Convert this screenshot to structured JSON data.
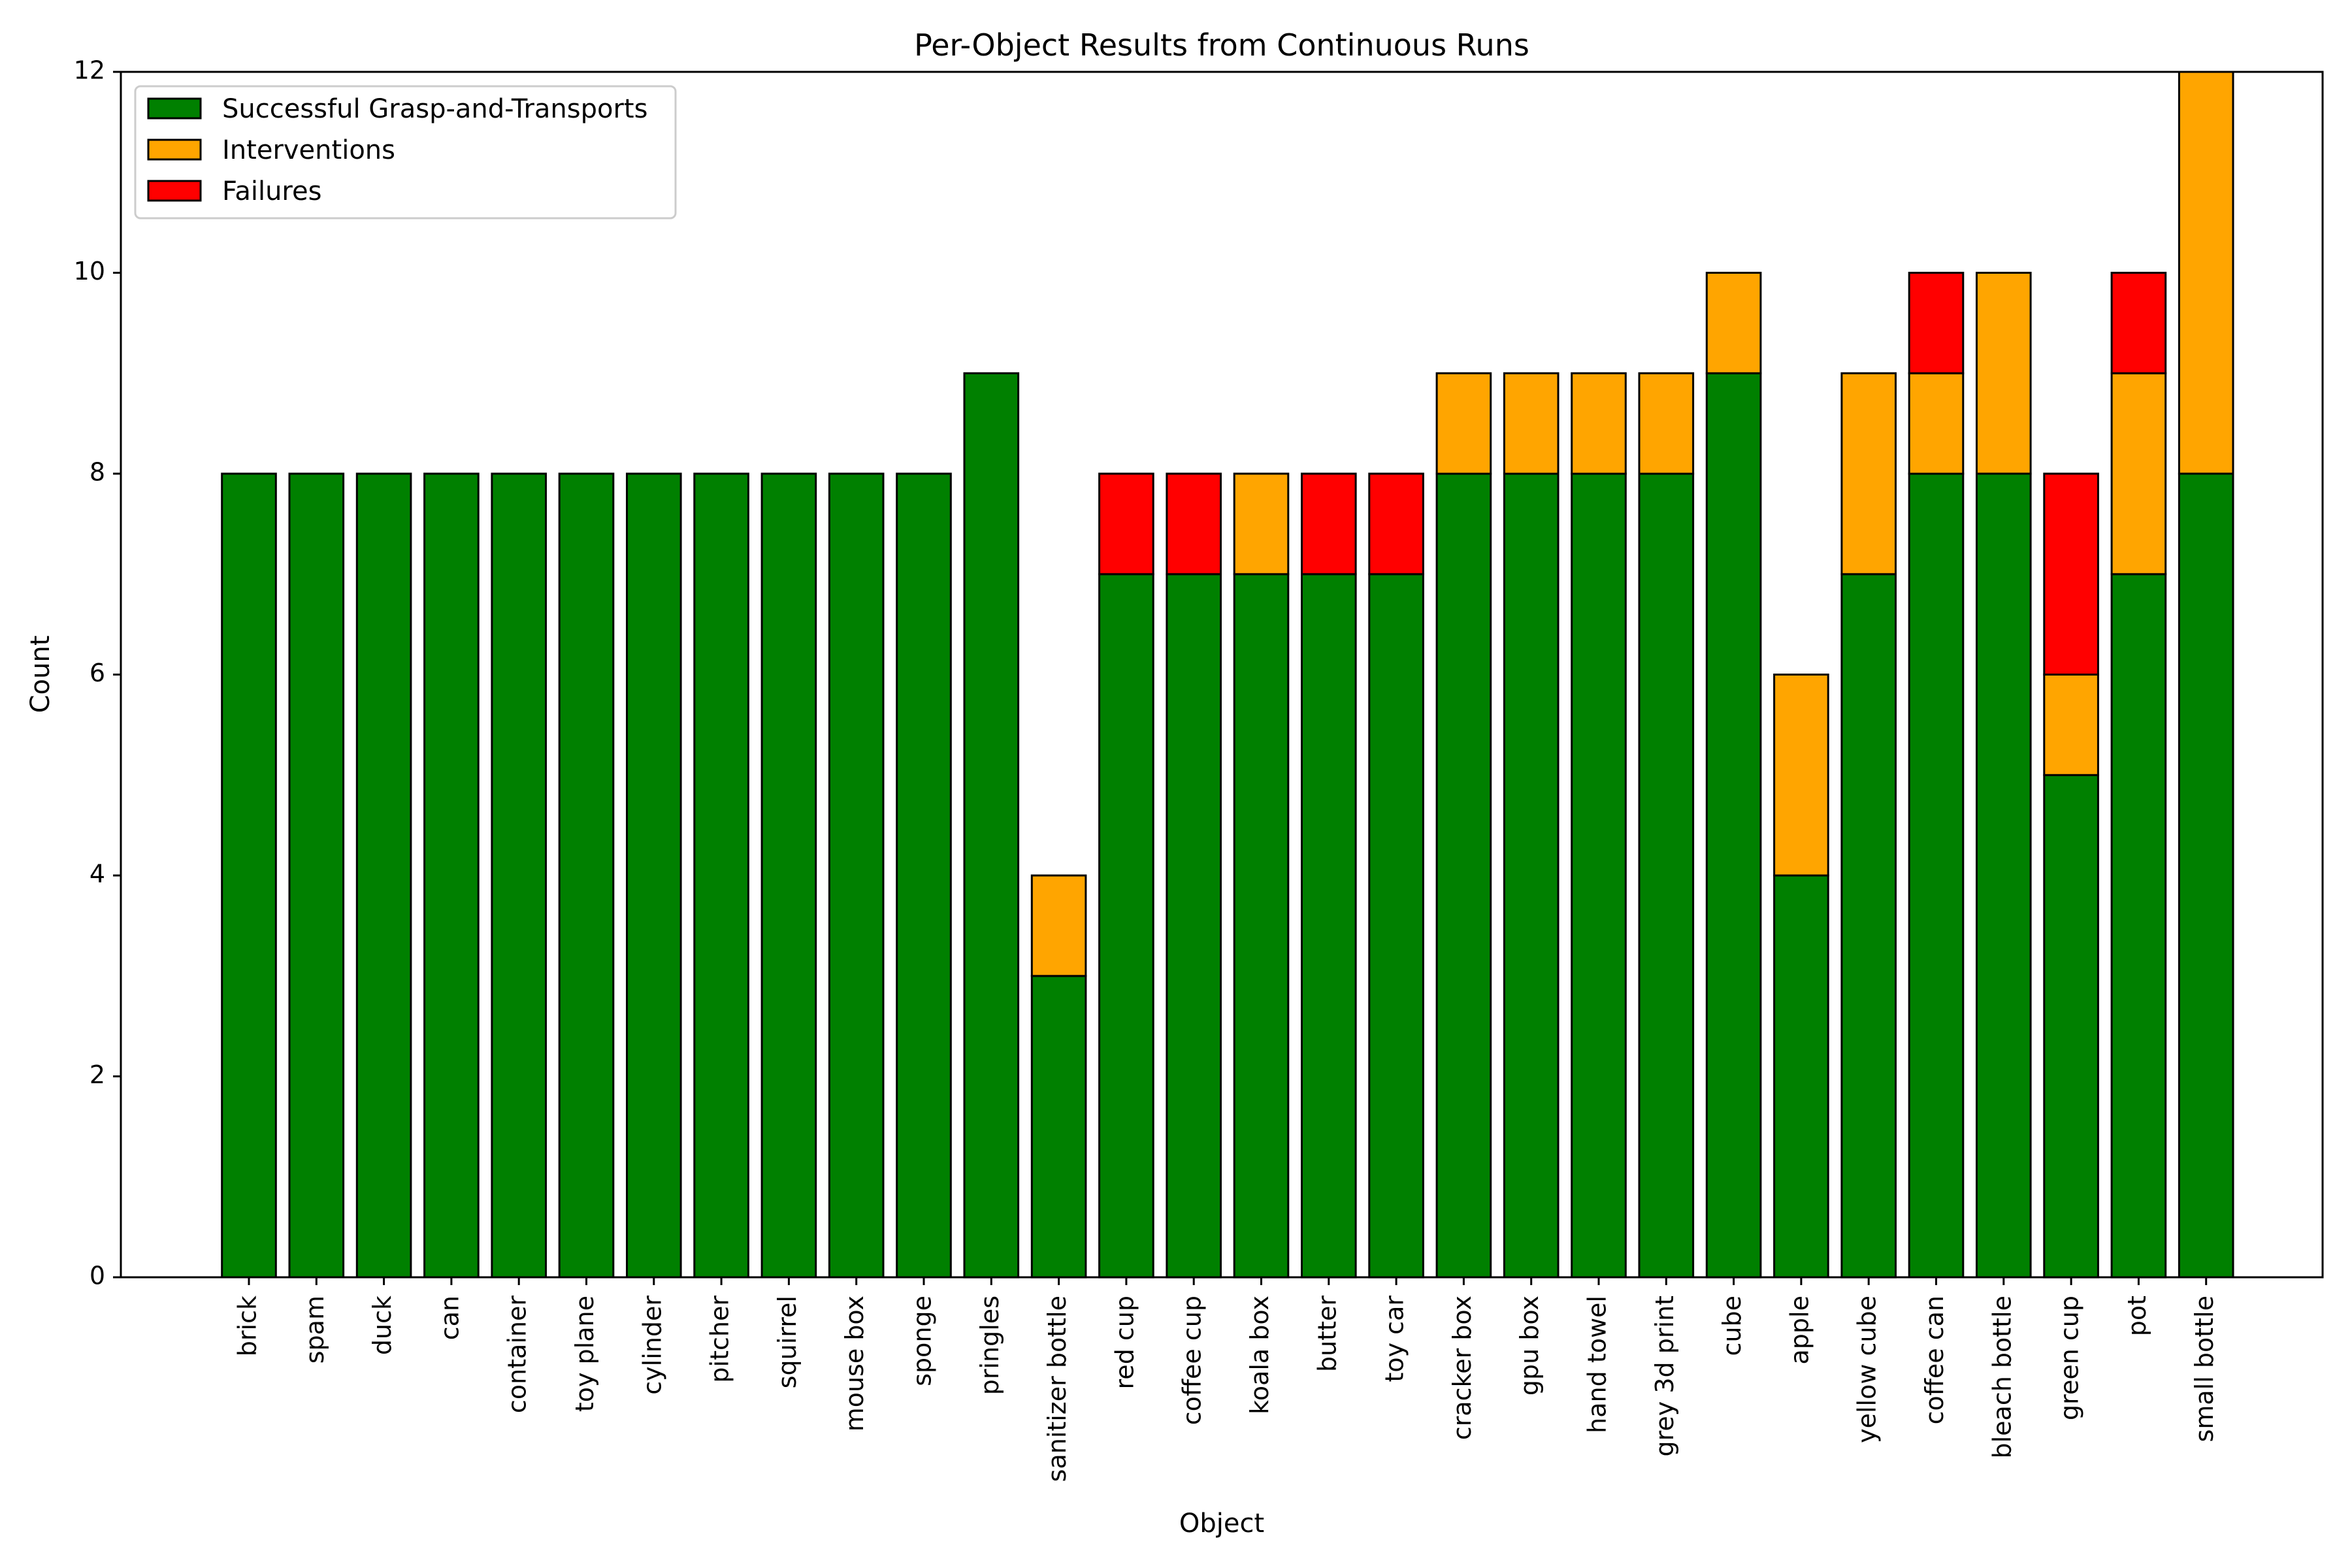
{
  "chart_data": {
    "type": "bar",
    "stacked": true,
    "title": "Per-Object Results from Continuous Runs",
    "xlabel": "Object",
    "ylabel": "Count",
    "ylim": [
      0,
      12
    ],
    "yticks": [
      0,
      2,
      4,
      6,
      8,
      10,
      12
    ],
    "grid": false,
    "legend_position": "top-left",
    "categories": [
      "brick",
      "spam",
      "duck",
      "can",
      "container",
      "toy plane",
      "cylinder",
      "pitcher",
      "squirrel",
      "mouse box",
      "sponge",
      "pringles",
      "sanitizer bottle",
      "red cup",
      "coffee cup",
      "koala box",
      "butter",
      "toy car",
      "cracker box",
      "gpu box",
      "hand towel",
      "grey 3d print",
      "cube",
      "apple",
      "yellow cube",
      "coffee can",
      "bleach bottle",
      "green cup",
      "pot",
      "small bottle"
    ],
    "series": [
      {
        "name": "Successful Grasp-and-Transports",
        "color": "#008000",
        "values": [
          8,
          8,
          8,
          8,
          8,
          8,
          8,
          8,
          8,
          8,
          8,
          9,
          3,
          7,
          7,
          7,
          7,
          7,
          8,
          8,
          8,
          8,
          9,
          4,
          7,
          8,
          8,
          5,
          7,
          8
        ]
      },
      {
        "name": "Interventions",
        "color": "#FFA500",
        "values": [
          0,
          0,
          0,
          0,
          0,
          0,
          0,
          0,
          0,
          0,
          0,
          0,
          1,
          0,
          0,
          1,
          0,
          0,
          1,
          1,
          1,
          1,
          1,
          2,
          2,
          1,
          2,
          1,
          2,
          4
        ]
      },
      {
        "name": "Failures",
        "color": "#FF0000",
        "values": [
          0,
          0,
          0,
          0,
          0,
          0,
          0,
          0,
          0,
          0,
          0,
          0,
          0,
          1,
          1,
          0,
          1,
          1,
          0,
          0,
          0,
          0,
          0,
          0,
          0,
          1,
          0,
          2,
          1,
          0
        ]
      }
    ]
  }
}
